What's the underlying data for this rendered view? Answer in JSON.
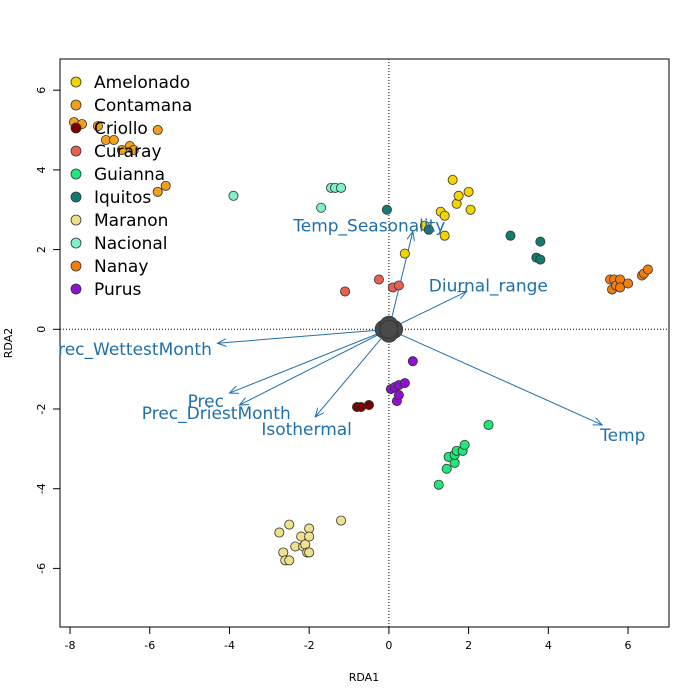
{
  "chart_data": {
    "type": "scatter",
    "xlabel": "RDA1",
    "ylabel": "RDA2",
    "xlim": [
      -8.2,
      7.0
    ],
    "ylim": [
      -7.5,
      6.8
    ],
    "xticks": [
      -8,
      -6,
      -4,
      -2,
      0,
      2,
      4,
      6
    ],
    "yticks": [
      -6,
      -4,
      -2,
      0,
      2,
      4,
      6
    ],
    "xtick_labels": [
      "-8",
      "-6",
      "-4",
      "-2",
      "0",
      "2",
      "4",
      "6"
    ],
    "ytick_labels": [
      "-6",
      "-4",
      "-2",
      "0",
      "2",
      "4",
      "6"
    ],
    "reference_lines": {
      "x": 0,
      "y": 0,
      "style": "dotted"
    },
    "legend_position": "top-left",
    "series": [
      {
        "name": "Amelonado",
        "color": "#f2d500",
        "points": [
          [
            0.4,
            1.9
          ],
          [
            0.9,
            2.6
          ],
          [
            1.3,
            2.95
          ],
          [
            1.4,
            2.85
          ],
          [
            1.4,
            2.35
          ],
          [
            1.6,
            3.75
          ],
          [
            1.7,
            3.15
          ],
          [
            1.75,
            3.35
          ],
          [
            2.0,
            3.45
          ],
          [
            2.05,
            3.0
          ]
        ]
      },
      {
        "name": "Contamana",
        "color": "#f0a01a",
        "points": [
          [
            -7.9,
            5.2
          ],
          [
            -7.7,
            5.15
          ],
          [
            -7.3,
            5.1
          ],
          [
            -7.1,
            4.75
          ],
          [
            -6.9,
            4.75
          ],
          [
            -6.7,
            4.5
          ],
          [
            -6.5,
            4.6
          ],
          [
            -6.4,
            4.5
          ],
          [
            -5.8,
            5.0
          ],
          [
            -5.8,
            3.45
          ],
          [
            -5.6,
            3.6
          ]
        ]
      },
      {
        "name": "Criollo",
        "color": "#7a0000",
        "points": [
          [
            -0.8,
            -1.95
          ],
          [
            -0.7,
            -1.95
          ],
          [
            -0.5,
            -1.9
          ]
        ]
      },
      {
        "name": "Curaray",
        "color": "#e86050",
        "points": [
          [
            -1.1,
            0.95
          ],
          [
            -0.25,
            1.25
          ],
          [
            0.1,
            1.05
          ],
          [
            0.25,
            1.1
          ]
        ]
      },
      {
        "name": "Guianna",
        "color": "#1ee87a",
        "points": [
          [
            1.25,
            -3.9
          ],
          [
            1.45,
            -3.5
          ],
          [
            1.5,
            -3.2
          ],
          [
            1.65,
            -3.35
          ],
          [
            1.65,
            -3.15
          ],
          [
            1.7,
            -3.05
          ],
          [
            1.85,
            -3.05
          ],
          [
            1.9,
            -2.9
          ],
          [
            2.5,
            -2.4
          ]
        ]
      },
      {
        "name": "Iquitos",
        "color": "#157a6e",
        "points": [
          [
            -0.05,
            3.0
          ],
          [
            1.0,
            2.5
          ],
          [
            3.05,
            2.35
          ],
          [
            3.7,
            1.8
          ],
          [
            3.8,
            2.2
          ],
          [
            3.8,
            1.75
          ]
        ]
      },
      {
        "name": "Maranon",
        "color": "#efe08c",
        "points": [
          [
            -2.75,
            -5.1
          ],
          [
            -2.65,
            -5.6
          ],
          [
            -2.6,
            -5.8
          ],
          [
            -2.5,
            -4.9
          ],
          [
            -2.5,
            -5.8
          ],
          [
            -2.35,
            -5.45
          ],
          [
            -2.2,
            -5.2
          ],
          [
            -2.15,
            -5.45
          ],
          [
            -2.1,
            -5.4
          ],
          [
            -2.05,
            -5.6
          ],
          [
            -2.0,
            -5.0
          ],
          [
            -2.0,
            -5.2
          ],
          [
            -2.0,
            -5.6
          ],
          [
            -1.2,
            -4.8
          ]
        ]
      },
      {
        "name": "Nacional",
        "color": "#80f0c8",
        "points": [
          [
            -3.9,
            3.35
          ],
          [
            -1.7,
            3.05
          ],
          [
            -1.45,
            3.55
          ],
          [
            -1.35,
            3.55
          ],
          [
            -1.2,
            3.55
          ]
        ]
      },
      {
        "name": "Nanay",
        "color": "#ef7d10",
        "points": [
          [
            5.55,
            1.25
          ],
          [
            5.6,
            1.0
          ],
          [
            5.65,
            1.25
          ],
          [
            5.7,
            1.1
          ],
          [
            5.8,
            1.25
          ],
          [
            5.8,
            1.05
          ],
          [
            6.0,
            1.15
          ],
          [
            6.35,
            1.35
          ],
          [
            6.4,
            1.4
          ],
          [
            6.5,
            1.5
          ]
        ]
      },
      {
        "name": "Purus",
        "color": "#8e10d0",
        "points": [
          [
            0.05,
            -1.5
          ],
          [
            0.15,
            -1.45
          ],
          [
            0.2,
            -1.8
          ],
          [
            0.25,
            -1.65
          ],
          [
            0.25,
            -1.4
          ],
          [
            0.4,
            -1.35
          ],
          [
            0.6,
            -0.8
          ]
        ]
      }
    ],
    "site_marker": {
      "x": 0.0,
      "y": 0.0,
      "color": "#4a4a4a"
    },
    "arrows": [
      {
        "label": "Temp_Seasonality",
        "x": 0.6,
        "y": 2.45
      },
      {
        "label": "Diurnal_range",
        "x": 1.95,
        "y": 0.95
      },
      {
        "label": "rec_WettestMonth",
        "x": -4.3,
        "y": -0.35
      },
      {
        "label": "Prec",
        "x": -4.0,
        "y": -1.6
      },
      {
        "label": "Prec_DriestMonth",
        "x": -3.75,
        "y": -1.9
      },
      {
        "label": "Isothermal",
        "x": -1.85,
        "y": -2.2
      },
      {
        "label": "Temp",
        "x": 5.35,
        "y": -2.4
      }
    ]
  }
}
